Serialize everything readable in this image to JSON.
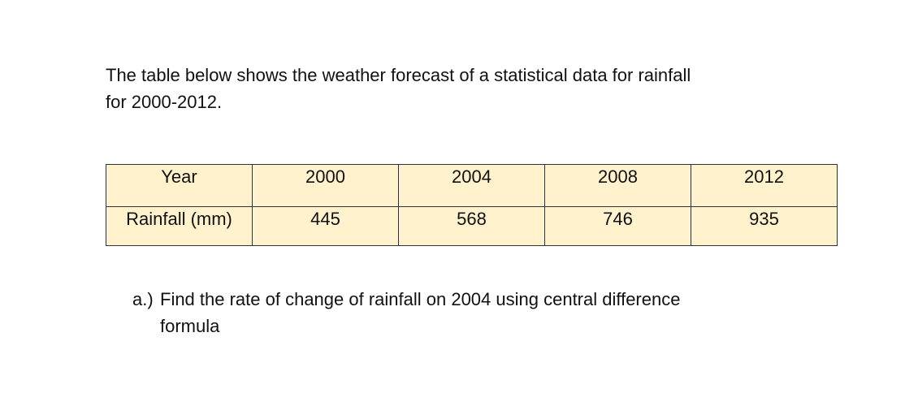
{
  "intro": {
    "lines": [
      "The table below shows the weather forecast of a statistical data for rainfall",
      "for 2000-2012."
    ]
  },
  "table": {
    "rows": [
      [
        "Year",
        2000,
        2004,
        2008,
        2012
      ],
      [
        "Rainfall (mm)",
        445,
        568,
        746,
        935
      ]
    ]
  },
  "question": {
    "label": "a.)",
    "lines": [
      "Find the rate of change of rainfall on 2004 using central difference",
      "formula"
    ]
  }
}
